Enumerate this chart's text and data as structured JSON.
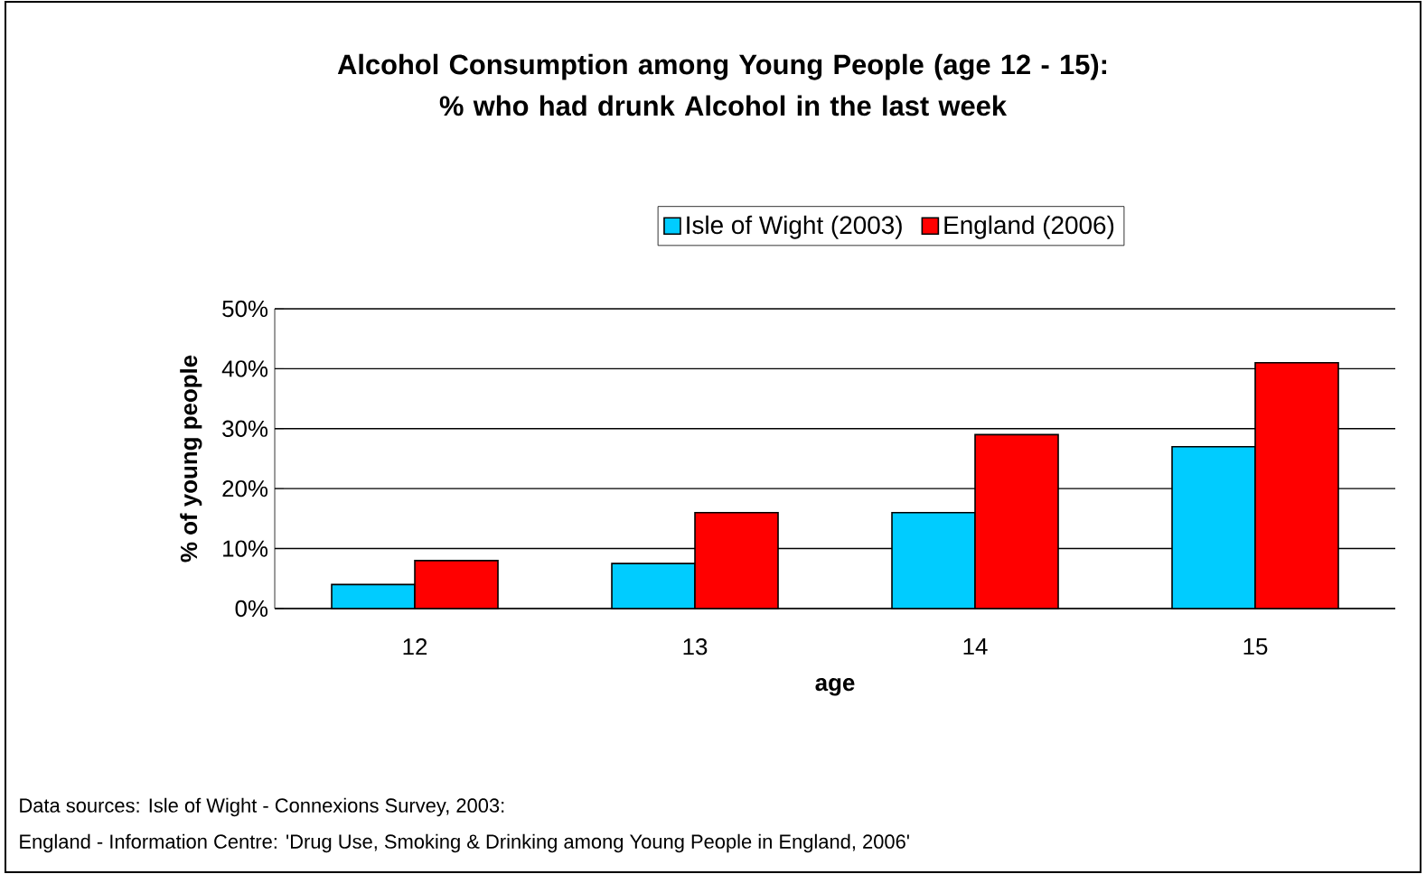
{
  "chart_data": {
    "type": "bar",
    "title": "Alcohol Consumption among Young People (age 12 - 15):\n% who had drunk Alcohol in the last week",
    "xlabel": "age",
    "ylabel": "% of young people",
    "categories": [
      "12",
      "13",
      "14",
      "15"
    ],
    "series": [
      {
        "name": "Isle of Wight (2003)",
        "color": "#00ccff",
        "values": [
          4,
          7.5,
          16,
          27
        ]
      },
      {
        "name": "England (2006)",
        "color": "#ff0000",
        "values": [
          8,
          16,
          29,
          41
        ]
      }
    ],
    "ylim": [
      0,
      50
    ],
    "yticks": [
      {
        "value": 0,
        "label": "0%"
      },
      {
        "value": 10,
        "label": "10%"
      },
      {
        "value": 20,
        "label": "20%"
      },
      {
        "value": 30,
        "label": "30%"
      },
      {
        "value": 40,
        "label": "40%"
      },
      {
        "value": 50,
        "label": "50%"
      }
    ],
    "grid": "y",
    "legend": "top",
    "annotations": [
      "Data sources:  Isle of Wight - Connexions Survey, 2003:",
      "England - Information Centre: 'Drug Use, Smoking & Drinking among Young People in England, 2006'"
    ]
  }
}
